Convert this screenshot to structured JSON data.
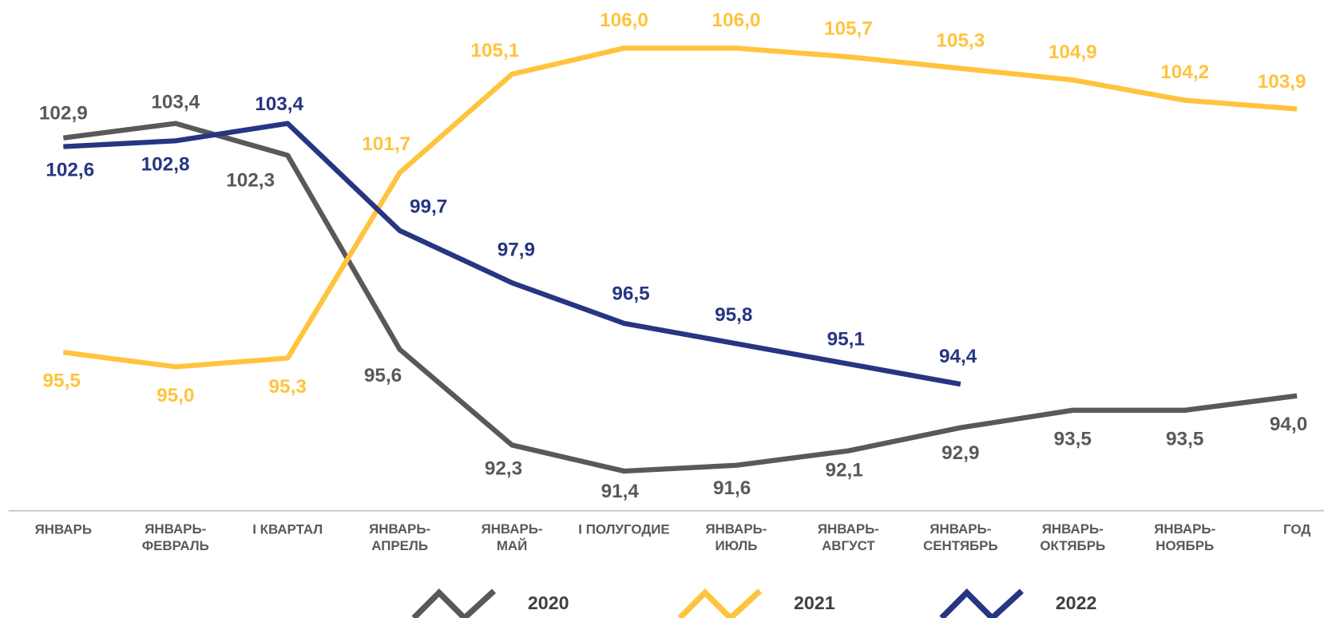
{
  "chart_data": {
    "type": "line",
    "categories": [
      "ЯНВАРЬ",
      "ЯНВАРЬ-\nФЕВРАЛЬ",
      "I КВАРТАЛ",
      "ЯНВАРЬ-\nАПРЕЛЬ",
      "ЯНВАРЬ-\nМАЙ",
      "I ПОЛУГОДИЕ",
      "ЯНВАРЬ-\nИЮЛЬ",
      "ЯНВАРЬ-\nАВГУСТ",
      "ЯНВАРЬ-\nСЕНТЯБРЬ",
      "ЯНВАРЬ-\nОКТЯБРЬ",
      "ЯНВАРЬ-\nНОЯБРЬ",
      "ГОД"
    ],
    "series": [
      {
        "name": "2020",
        "color": "#595959",
        "values": [
          102.9,
          103.4,
          102.3,
          95.6,
          92.3,
          91.4,
          91.6,
          92.1,
          92.9,
          93.5,
          93.5,
          94.0
        ],
        "value_labels": [
          "102,9",
          "103,4",
          "102,3",
          "95,6",
          "92,3",
          "91,4",
          "91,6",
          "92,1",
          "92,9",
          "93,5",
          "93,5",
          "94,0"
        ]
      },
      {
        "name": "2021",
        "color": "#FFC33D",
        "values": [
          95.5,
          95.0,
          95.3,
          101.7,
          105.1,
          106.0,
          106.0,
          105.7,
          105.3,
          104.9,
          104.2,
          103.9
        ],
        "value_labels": [
          "95,5",
          "95,0",
          "95,3",
          "101,7",
          "105,1",
          "106,0",
          "106,0",
          "105,7",
          "105,3",
          "104,9",
          "104,2",
          "103,9"
        ]
      },
      {
        "name": "2022",
        "color": "#273582",
        "values": [
          102.6,
          102.8,
          103.4,
          99.7,
          97.9,
          96.5,
          95.8,
          95.1,
          94.4,
          null,
          null,
          null
        ],
        "value_labels": [
          "102,6",
          "102,8",
          "103,4",
          "99,7",
          "97,9",
          "96,5",
          "95,8",
          "95,1",
          "94,4",
          null,
          null,
          null
        ]
      }
    ]
  }
}
